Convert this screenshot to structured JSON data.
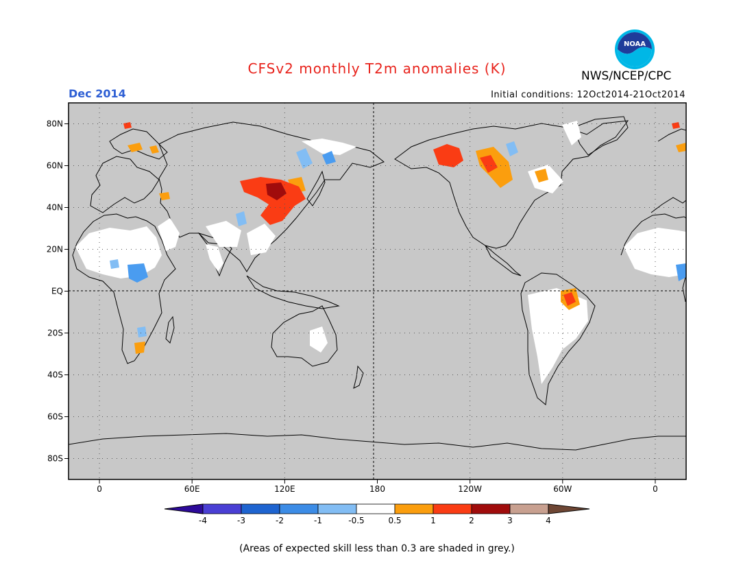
{
  "header": {
    "title": "CFSv2 monthly T2m anomalies (K)",
    "period": "Dec 2014",
    "initial_conditions": "Initial conditions: 12Oct2014-21Oct2014",
    "agency": "NWS/NCEP/CPC",
    "logo_text": "NOAA"
  },
  "map": {
    "lat_labels": [
      "80N",
      "60N",
      "40N",
      "20N",
      "EQ",
      "20S",
      "40S",
      "60S",
      "80S"
    ],
    "lat_values": [
      80,
      60,
      40,
      20,
      0,
      -20,
      -40,
      -60,
      -80
    ],
    "lon_labels": [
      "0",
      "60E",
      "120E",
      "180",
      "120W",
      "60W",
      "0"
    ],
    "lon_values": [
      0,
      60,
      120,
      180,
      240,
      300,
      360
    ],
    "lon_range": [
      -20,
      380
    ],
    "lat_range": [
      -90,
      90
    ],
    "background_color": "#c8c8c8",
    "regions": [
      {
        "name": "N. Africa / Sahel skill area",
        "class": "0to0.5",
        "color": "#ffffff"
      },
      {
        "name": "Central Africa",
        "class": "-1to-2",
        "color": "#4a9cf0"
      },
      {
        "name": "Mongolia / N. China",
        "class": "2to3",
        "color": "#a00c0c"
      },
      {
        "name": "NE China",
        "class": "1to2",
        "color": "#fa3c14"
      },
      {
        "name": "Alaska / NW Canada",
        "class": "1to2",
        "color": "#fa3c14"
      },
      {
        "name": "Central Canada",
        "class": "0.5to1",
        "color": "#fb9e0e"
      },
      {
        "name": "NE Brazil",
        "class": "1to2",
        "color": "#fa3c14"
      },
      {
        "name": "Siberia",
        "class": "-0.5to-1",
        "color": "#82bdf4"
      }
    ]
  },
  "colorbar": {
    "labels": [
      "-4",
      "-3",
      "-2",
      "-1",
      "-0.5",
      "0.5",
      "1",
      "2",
      "3",
      "4"
    ],
    "colors": [
      "#2d0a9a",
      "#4a3fd4",
      "#1e64d0",
      "#3c8ce6",
      "#82bdf4",
      "#ffffff",
      "#fb9e0e",
      "#fa3c14",
      "#a00c0c",
      "#c8a090",
      "#6e4634"
    ]
  },
  "footnote": "(Areas of expected skill less than 0.3 are shaded in grey.)"
}
